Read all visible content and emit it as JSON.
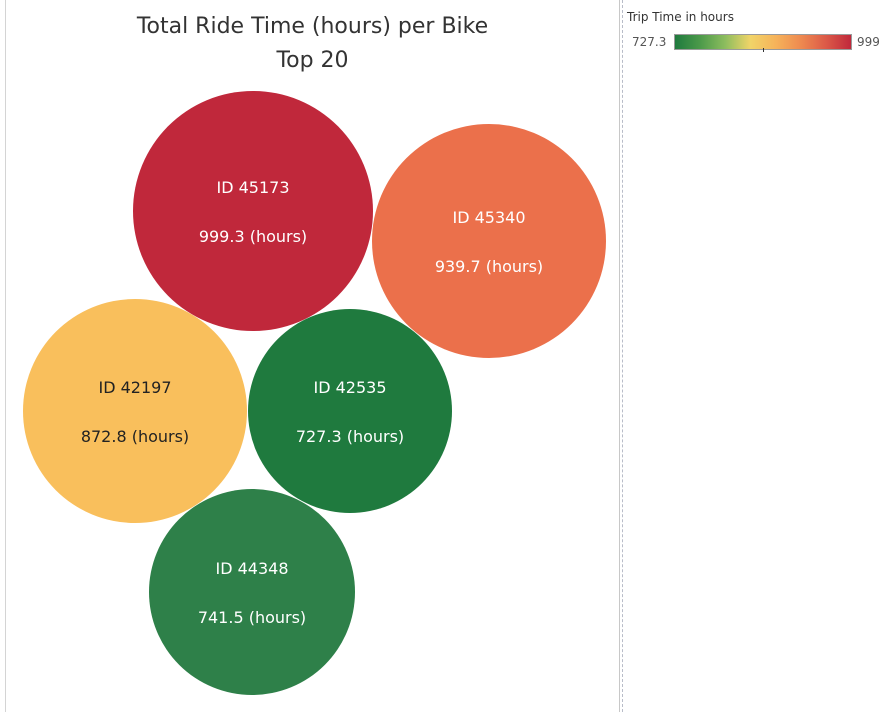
{
  "chart_data": {
    "type": "bubble",
    "title": "Total Ride Time (hours) per Bike",
    "subtitle": "Top 20",
    "series": [
      {
        "label": "ID 45173",
        "value": 999.3,
        "value_label": "999.3 (hours)"
      },
      {
        "label": "ID 45340",
        "value": 939.7,
        "value_label": "939.7 (hours)"
      },
      {
        "label": "ID 42197",
        "value": 872.8,
        "value_label": "872.8 (hours)"
      },
      {
        "label": "ID 42535",
        "value": 727.3,
        "value_label": "727.3 (hours)"
      },
      {
        "label": "ID 44348",
        "value": 741.5,
        "value_label": "741.5 (hours)"
      }
    ],
    "color_legend": {
      "title": "Trip Time in hours",
      "min_label": "727.3",
      "max_label": "999",
      "min": 727.3,
      "max": 999.3,
      "tick_value": 863.3,
      "colors": [
        "#1f7a3e",
        "#4c9a4a",
        "#8dbd5e",
        "#f1d468",
        "#f6b35a",
        "#ee8a50",
        "#dc5a48",
        "#c0283b"
      ],
      "bubble_colors": [
        "#c0283b",
        "#eb704b",
        "#f9bf5c",
        "#1f7a3e",
        "#2e8049"
      ],
      "label_colors": [
        "#ffffff",
        "#ffffff",
        "#222222",
        "#ffffff",
        "#ffffff"
      ]
    }
  }
}
